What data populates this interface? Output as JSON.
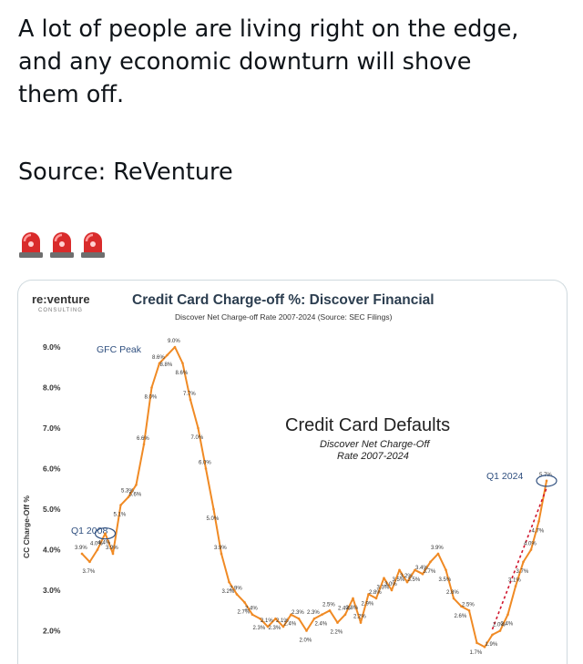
{
  "tweet": {
    "line1": "A lot of people are living right on the edge,",
    "line2": "and any economic downturn will shove",
    "line3": "them off.",
    "source": "Source: ReVenture",
    "emoji_icons": [
      "police-light-icon",
      "police-light-icon",
      "police-light-icon"
    ]
  },
  "chart_meta": {
    "logo_main": "re:venture",
    "logo_sub": "CONSULTING",
    "title": "Credit Card Charge-off %: Discover Financial",
    "subtitle": "Discover Net Charge-off Rate 2007-2024 (Source: SEC Filings)",
    "inset_title": "Credit Card Defaults",
    "inset_sub1": "Discover Net Charge-Off",
    "inset_sub2": "Rate 2007-2024",
    "gfc_label": "GFC Peak",
    "q1_2008_label": "Q1 2008",
    "q1_2024_label": "Q1 2024",
    "line_color": "#f08a24",
    "callout_color": "#2f4f7f"
  },
  "chart_data": {
    "type": "line",
    "title": "Credit Card Charge-off %: Discover Financial",
    "subtitle": "Discover Net Charge-off Rate 2007-2024 (Source: SEC Filings)",
    "xlabel": "",
    "ylabel": "CC Charge-Off %",
    "ylim": [
      1.7,
      9.5
    ],
    "yticks": [
      "9.0%",
      "8.0%",
      "7.0%",
      "6.0%",
      "5.0%",
      "4.0%",
      "3.0%",
      "2.0%"
    ],
    "ytick_values": [
      9,
      8,
      7,
      6,
      5,
      4,
      3,
      2
    ],
    "series": [
      {
        "values": [
          3.9,
          3.7,
          4.0,
          4.4,
          3.9,
          5.1,
          5.3,
          5.6,
          6.6,
          8.0,
          8.6,
          8.8,
          9.0,
          8.6,
          7.7,
          7.0,
          6.0,
          5.0,
          3.9,
          3.2,
          2.9,
          2.7,
          2.4,
          2.3,
          2.1,
          2.3,
          2.1,
          2.4,
          2.3,
          2.0,
          2.3,
          2.4,
          2.5,
          2.2,
          2.4,
          2.8,
          2.2,
          2.9,
          2.8,
          3.3,
          3.0,
          3.5,
          3.2,
          3.5,
          3.4,
          3.7,
          3.9,
          3.5,
          2.8,
          2.6,
          2.5,
          1.7,
          1.6,
          1.9,
          2.0,
          2.4,
          3.1,
          3.7,
          4.0,
          4.7,
          5.7
        ],
        "labels": [
          "3.9%",
          "3.7%",
          "4.0%",
          "4.4%",
          "3.9%",
          "5.1%",
          "5.3%",
          "5.6%",
          "6.6%",
          "8.0%",
          "8.6%",
          "8.8%",
          "9.0%",
          "8.6%",
          "7.7%",
          "7.0%",
          "6.0%",
          "5.0%",
          "3.9%",
          "3.2%",
          "2.9%",
          "2.7%",
          "2.4%",
          "2.3%",
          "2.1%",
          "2.3%",
          "2.1%",
          "2.4%",
          "2.3%",
          "2.0%",
          "2.3%",
          "2.4%",
          "2.5%",
          "2.2%",
          "2.4%",
          "2.8%",
          "2.2%",
          "2.9%",
          "2.8%",
          "3.3%",
          "3.0%",
          "3.5%",
          "3.2%",
          "3.5%",
          "3.4%",
          "3.7%",
          "3.9%",
          "3.5%",
          "2.8%",
          "2.6%",
          "2.5%",
          "1.7%",
          "",
          "1.9%",
          "2.0%",
          "2.4%",
          "3.1%",
          "3.7%",
          "4.0%",
          "4.7%",
          "5.7%"
        ]
      }
    ]
  }
}
